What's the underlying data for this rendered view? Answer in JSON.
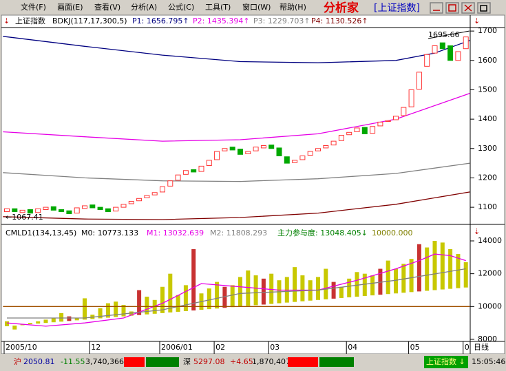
{
  "menu": {
    "items": [
      "文件(F)",
      "画面(E)",
      "查看(V)",
      "分析(A)",
      "公式(C)",
      "工具(T)",
      "窗口(W)",
      "帮助(H)"
    ],
    "app": "分析家",
    "symbol": "[上证指数]"
  },
  "chart_data": [
    {
      "type": "candlestick",
      "header": [
        "上证指数",
        "BDKJ(117,17,300,5)",
        "P1: 1656.795↑",
        "P2: 1435.394↑",
        "P3: 1229.703↑",
        "P4: 1130.526↑"
      ],
      "open": [
        1085,
        1095,
        1082,
        1092,
        1082,
        1092,
        1102,
        1092,
        1088,
        1080,
        1096,
        1108,
        1100,
        1095,
        1087,
        1100,
        1112,
        1122,
        1132,
        1142,
        1152,
        1172,
        1192,
        1212,
        1228,
        1222,
        1242,
        1262,
        1292,
        1305,
        1298,
        1282,
        1292,
        1302,
        1312,
        1302,
        1272,
        1252,
        1262,
        1277,
        1292,
        1302,
        1312,
        1327,
        1347,
        1357,
        1372,
        1352,
        1377,
        1392,
        1398,
        1412,
        1442,
        1502,
        1580,
        1625,
        1660,
        1650,
        1600,
        1640
      ],
      "close": [
        1095,
        1085,
        1090,
        1080,
        1095,
        1100,
        1090,
        1085,
        1078,
        1098,
        1105,
        1098,
        1092,
        1085,
        1100,
        1110,
        1120,
        1130,
        1140,
        1150,
        1170,
        1190,
        1210,
        1225,
        1220,
        1240,
        1260,
        1290,
        1300,
        1295,
        1280,
        1290,
        1305,
        1310,
        1300,
        1275,
        1250,
        1260,
        1275,
        1290,
        1300,
        1310,
        1325,
        1345,
        1355,
        1370,
        1350,
        1375,
        1390,
        1395,
        1410,
        1440,
        1500,
        1560,
        1620,
        1650,
        1640,
        1600,
        1630,
        1680
      ],
      "up_color": "#ff3232",
      "down_color": "#00a800",
      "ylim": [
        1044,
        1712
      ],
      "yticks": [
        1100,
        1200,
        1300,
        1400,
        1500,
        1600,
        1700
      ],
      "lines": [
        {
          "color": "#000080",
          "x": [
            -0.5,
            10,
            20,
            30,
            40,
            50,
            55,
            59.5
          ],
          "values": [
            1682,
            1648,
            1618,
            1596,
            1592,
            1600,
            1625,
            1668
          ]
        },
        {
          "color": "#e600e6",
          "x": [
            -0.5,
            10,
            20,
            30,
            40,
            50,
            59.5
          ],
          "values": [
            1357,
            1340,
            1325,
            1330,
            1350,
            1400,
            1488
          ]
        },
        {
          "color": "#808080",
          "x": [
            -0.5,
            10,
            20,
            30,
            40,
            50,
            59.5
          ],
          "values": [
            1218,
            1200,
            1190,
            1188,
            1197,
            1215,
            1250
          ]
        },
        {
          "color": "#800000",
          "x": [
            -0.5,
            10,
            20,
            30,
            40,
            50,
            59.5
          ],
          "values": [
            1068,
            1060,
            1058,
            1065,
            1080,
            1110,
            1152
          ]
        }
      ],
      "annotations": [
        "1695.66",
        "←1067.41"
      ],
      "date_labels": [
        {
          "index": 0,
          "label": "2005/10"
        },
        {
          "index": 11,
          "label": "12"
        },
        {
          "index": 20,
          "label": "2006/01"
        },
        {
          "index": 27,
          "label": "02"
        },
        {
          "index": 34,
          "label": "03"
        },
        {
          "index": 44,
          "label": "04"
        },
        {
          "index": 52,
          "label": "05"
        },
        {
          "index": 59,
          "label": "0"
        }
      ],
      "period": "日线"
    },
    {
      "type": "bar",
      "header": [
        "CMLD1(134,13,45)",
        "M0: 10773.133",
        "M1: 13032.639",
        "M2: 11808.293",
        "主力参与度: 13048.405↓",
        "10000.000"
      ],
      "values": [
        9100,
        8600,
        8900,
        9000,
        9100,
        9200,
        9300,
        9600,
        9400,
        9300,
        10500,
        9500,
        9900,
        10200,
        10300,
        10100,
        9700,
        11000,
        10600,
        10400,
        11200,
        12000,
        10700,
        11300,
        13500,
        10800,
        11100,
        11500,
        11200,
        11300,
        11800,
        12200,
        11900,
        11700,
        12000,
        11600,
        11800,
        12400,
        11900,
        11600,
        11800,
        12300,
        11500,
        11200,
        11700,
        12100,
        12000,
        11900,
        12300,
        12800,
        12300,
        12600,
        12900,
        13800,
        13600,
        14000,
        13900,
        13500,
        13200,
        12700
      ],
      "base": [
        8800,
        8840,
        8880,
        8920,
        8960,
        9000,
        9040,
        9080,
        9120,
        9160,
        9200,
        9240,
        9280,
        9320,
        9360,
        9400,
        9440,
        9480,
        9520,
        9560,
        9600,
        9640,
        9680,
        9720,
        9760,
        9800,
        9840,
        9880,
        9920,
        9960,
        10000,
        10040,
        10080,
        10120,
        10160,
        10200,
        10240,
        10280,
        10320,
        10360,
        10400,
        10440,
        10480,
        10520,
        10560,
        10600,
        10640,
        10680,
        10720,
        10760,
        10800,
        10840,
        10880,
        10920,
        10960,
        11000,
        11040,
        11080,
        11120,
        11160
      ],
      "color": "#c8c800",
      "highlight_color": "#c83232",
      "red_bars": [
        8,
        17,
        24,
        28,
        33,
        42,
        48,
        53
      ],
      "ylim": [
        7916,
        14839
      ],
      "yticks": [
        8000,
        10000,
        12000,
        14000
      ],
      "lines": [
        {
          "color": "#e600e6",
          "x": [
            0,
            5,
            10,
            15,
            20,
            25,
            30,
            35,
            40,
            45,
            50,
            53,
            55,
            57,
            59
          ],
          "values": [
            9000,
            8800,
            9000,
            9300,
            10200,
            11400,
            11200,
            11000,
            11000,
            11600,
            12300,
            12800,
            13200,
            13100,
            12800
          ]
        },
        {
          "color": "#808080",
          "x": [
            0,
            10,
            20,
            30,
            40,
            50,
            59
          ],
          "values": [
            9300,
            9300,
            9800,
            10800,
            11000,
            11600,
            12300
          ]
        },
        {
          "color": "#a05000",
          "x": [
            -0.5,
            59.5
          ],
          "values": [
            10000,
            10000
          ]
        }
      ]
    }
  ],
  "status": {
    "sh": "沪",
    "sh_index": "2050.81",
    "sh_change": "-11.55",
    "sh_volume": "3,740,366",
    "sz": "深",
    "sz_index": "5297.08",
    "sz_change": "+4.65",
    "sz_volume": "1,870,407",
    "symbol": "上证指数 ↓",
    "time": "15:05:46"
  }
}
